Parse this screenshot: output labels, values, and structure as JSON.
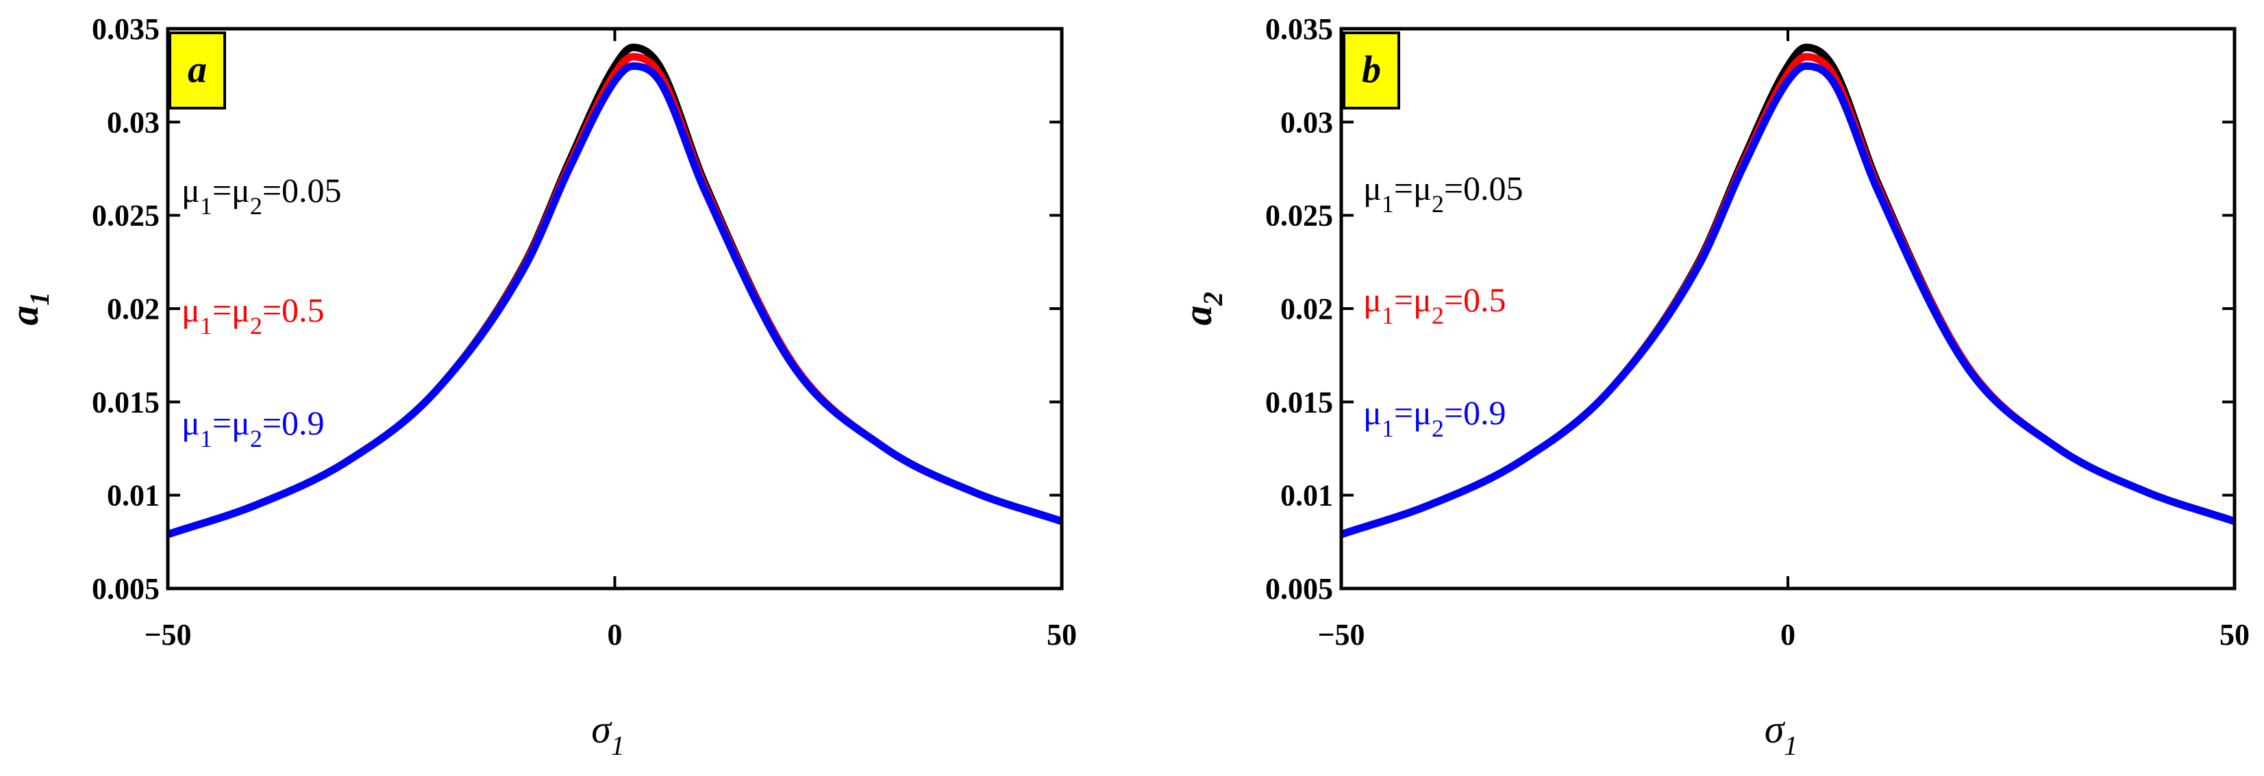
{
  "chart_data": [
    {
      "type": "line",
      "panel_label": "a",
      "xlabel": "σ",
      "xlabel_sub": "1",
      "ylabel": "a",
      "ylabel_sub": "1",
      "xlim": [
        -50,
        50
      ],
      "ylim": [
        0.005,
        0.035
      ],
      "xticks": [
        -50,
        0,
        50
      ],
      "xtick_labels": [
        "−50",
        "0",
        "50"
      ],
      "yticks": [
        0.005,
        0.01,
        0.015,
        0.02,
        0.025,
        0.03,
        0.035
      ],
      "ytick_labels": [
        "0.005",
        "0.01",
        "0.015",
        "0.02",
        "0.025",
        "0.03",
        "0.035"
      ],
      "grid": false,
      "series": [
        {
          "name": "μ1=μ2=0.05",
          "label_parts": [
            "μ",
            "1",
            "=μ",
            "2",
            "=0.05"
          ],
          "color": "#000000",
          "x": [
            -50,
            -40,
            -30,
            -20,
            -10,
            -5,
            0,
            2,
            5,
            10,
            20,
            30,
            40,
            50
          ],
          "y": [
            0.0079,
            0.0095,
            0.0118,
            0.0156,
            0.0225,
            0.028,
            0.033,
            0.034,
            0.033,
            0.0268,
            0.017,
            0.0126,
            0.0102,
            0.0086
          ]
        },
        {
          "name": "μ1=μ2=0.5",
          "label_parts": [
            "μ",
            "1",
            "=μ",
            "2",
            "=0.5"
          ],
          "color": "#ff0000",
          "x": [
            -50,
            -40,
            -30,
            -20,
            -10,
            -5,
            0,
            2,
            5,
            10,
            20,
            30,
            40,
            50
          ],
          "y": [
            0.0079,
            0.0095,
            0.0118,
            0.0156,
            0.0224,
            0.0278,
            0.0326,
            0.0335,
            0.0326,
            0.0266,
            0.017,
            0.0126,
            0.0102,
            0.0086
          ]
        },
        {
          "name": "μ1=μ2=0.9",
          "label_parts": [
            "μ",
            "1",
            "=μ",
            "2",
            "=0.9"
          ],
          "color": "#0000ff",
          "x": [
            -50,
            -40,
            -30,
            -20,
            -10,
            -5,
            0,
            2,
            5,
            10,
            20,
            30,
            40,
            50
          ],
          "y": [
            0.0079,
            0.0095,
            0.0118,
            0.0156,
            0.0223,
            0.0276,
            0.0322,
            0.033,
            0.0322,
            0.0264,
            0.0169,
            0.0126,
            0.0102,
            0.0086
          ]
        }
      ]
    },
    {
      "type": "line",
      "panel_label": "b",
      "xlabel": "σ",
      "xlabel_sub": "1",
      "ylabel": "a",
      "ylabel_sub": "2",
      "xlim": [
        -50,
        50
      ],
      "ylim": [
        0.005,
        0.035
      ],
      "xticks": [
        -50,
        0,
        50
      ],
      "xtick_labels": [
        "−50",
        "0",
        "50"
      ],
      "yticks": [
        0.005,
        0.01,
        0.015,
        0.02,
        0.025,
        0.03,
        0.035
      ],
      "ytick_labels": [
        "0.005",
        "0.01",
        "0.015",
        "0.02",
        "0.025",
        "0.03",
        "0.035"
      ],
      "grid": false,
      "series": [
        {
          "name": "μ1=μ2=0.05",
          "label_parts": [
            "μ",
            "1",
            "=μ",
            "2",
            "=0.05"
          ],
          "color": "#000000",
          "x": [
            -50,
            -40,
            -30,
            -20,
            -10,
            -5,
            0,
            2,
            5,
            10,
            20,
            30,
            40,
            50
          ],
          "y": [
            0.0079,
            0.0095,
            0.0118,
            0.0156,
            0.0225,
            0.028,
            0.033,
            0.034,
            0.033,
            0.0268,
            0.017,
            0.0126,
            0.0102,
            0.0086
          ]
        },
        {
          "name": "μ1=μ2=0.5",
          "label_parts": [
            "μ",
            "1",
            "=μ",
            "2",
            "=0.5"
          ],
          "color": "#ff0000",
          "x": [
            -50,
            -40,
            -30,
            -20,
            -10,
            -5,
            0,
            2,
            5,
            10,
            20,
            30,
            40,
            50
          ],
          "y": [
            0.0079,
            0.0095,
            0.0118,
            0.0156,
            0.0224,
            0.0278,
            0.0326,
            0.0335,
            0.0326,
            0.0266,
            0.017,
            0.0126,
            0.0102,
            0.0086
          ]
        },
        {
          "name": "μ1=μ2=0.9",
          "label_parts": [
            "μ",
            "1",
            "=μ",
            "2",
            "=0.9"
          ],
          "color": "#0000ff",
          "x": [
            -50,
            -40,
            -30,
            -20,
            -10,
            -5,
            0,
            2,
            5,
            10,
            20,
            30,
            40,
            50
          ],
          "y": [
            0.0079,
            0.0095,
            0.0118,
            0.0156,
            0.0223,
            0.0276,
            0.0322,
            0.033,
            0.0322,
            0.0264,
            0.0169,
            0.0126,
            0.0102,
            0.0086
          ]
        }
      ]
    }
  ],
  "colors": {
    "panel_label_bg": "#ffff00",
    "axes": "#000000"
  }
}
